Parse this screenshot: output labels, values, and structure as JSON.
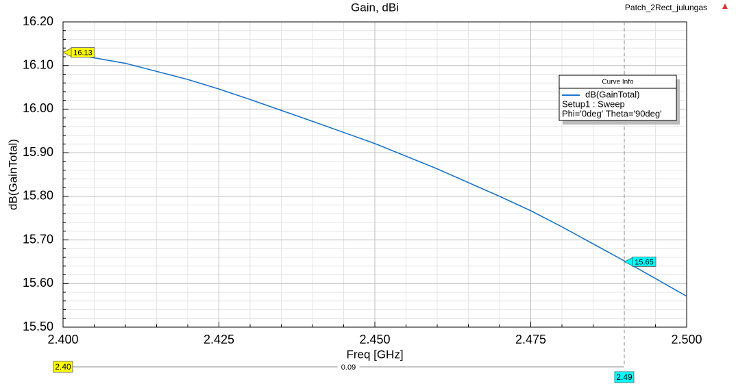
{
  "chart_data": {
    "type": "line",
    "title": "Gain, dBi",
    "project": "Patch_2Rect_julungas",
    "x_label": "Freq [GHz]",
    "y_label": "dB(GainTotal)",
    "x": [
      2.4,
      2.41,
      2.42,
      2.425,
      2.43,
      2.44,
      2.45,
      2.46,
      2.47,
      2.475,
      2.48,
      2.49,
      2.5
    ],
    "series": [
      {
        "name": "dB(GainTotal)",
        "color": "#1874cd",
        "values": [
          16.13,
          16.105,
          16.068,
          16.046,
          16.022,
          15.972,
          15.921,
          15.863,
          15.8,
          15.767,
          15.73,
          15.652,
          15.571
        ]
      }
    ],
    "legend_title": "Curve Info",
    "legend_lines": [
      "Setup1 : Sweep",
      "Phi='0deg' Theta='90deg'"
    ],
    "xlim": [
      2.4,
      2.5
    ],
    "ylim": [
      15.5,
      16.2
    ],
    "xticks": [
      {
        "value": 2.4,
        "label": "2.400"
      },
      {
        "value": 2.425,
        "label": "2.425"
      },
      {
        "value": 2.45,
        "label": "2.450"
      },
      {
        "value": 2.475,
        "label": "2.475"
      },
      {
        "value": 2.5,
        "label": "2.500"
      }
    ],
    "yticks": [
      {
        "value": 15.5,
        "label": "15.50"
      },
      {
        "value": 15.6,
        "label": "15.60"
      },
      {
        "value": 15.7,
        "label": "15.70"
      },
      {
        "value": 15.8,
        "label": "15.80"
      },
      {
        "value": 15.9,
        "label": "15.90"
      },
      {
        "value": 16.0,
        "label": "16.00"
      },
      {
        "value": 16.1,
        "label": "16.10"
      },
      {
        "value": 16.2,
        "label": "16.20"
      }
    ],
    "grid": true,
    "markers": [
      {
        "x": {
          "value": 2.4,
          "label": "2.40"
        },
        "y": 16.13,
        "color": "#ffff00"
      },
      {
        "x": {
          "value": 2.49,
          "label": "2.49"
        },
        "y": 15.65,
        "color": "#00ffff"
      }
    ],
    "marker_delta": 0.09
  }
}
